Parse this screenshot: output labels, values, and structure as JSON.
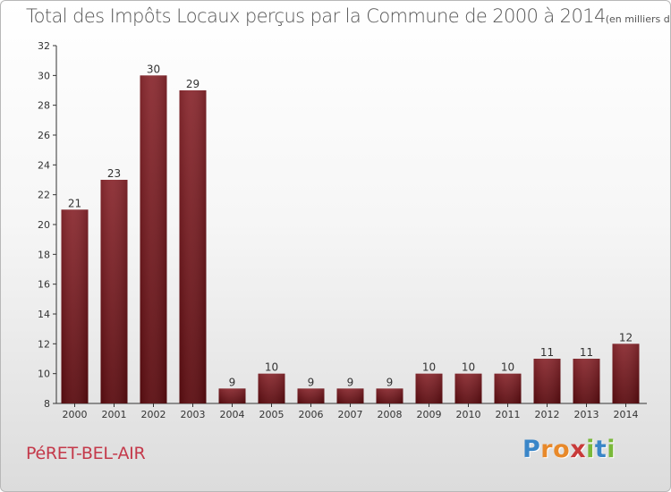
{
  "header": {
    "title": "Total des Impôts Locaux perçus par la Commune de 2000 à 2014",
    "unit": "(en milliers d'€)"
  },
  "footer": {
    "commune": "PéRET-BEL-AIR",
    "logo_letters": [
      "P",
      "r",
      "o",
      "x",
      "i",
      "t",
      "i"
    ],
    "logo_colors": [
      "#3a86c8",
      "#e8892a",
      "#e8892a",
      "#c83a3a",
      "#7ab93a",
      "#3a86c8",
      "#7ab93a"
    ]
  },
  "chart_data": {
    "type": "bar",
    "title": "Total des Impôts Locaux perçus par la Commune de 2000 à 2014",
    "categories": [
      "2000",
      "2001",
      "2002",
      "2003",
      "2004",
      "2005",
      "2006",
      "2007",
      "2008",
      "2009",
      "2010",
      "2011",
      "2012",
      "2013",
      "2014"
    ],
    "values": [
      21,
      23,
      30,
      29,
      9,
      10,
      9,
      9,
      9,
      10,
      10,
      10,
      11,
      11,
      12
    ],
    "ylim": [
      8,
      32
    ],
    "yticks": [
      8,
      10,
      12,
      14,
      16,
      18,
      20,
      22,
      24,
      26,
      28,
      30,
      32
    ],
    "grid": false,
    "bar_color": "#7a1f24",
    "data_labels": true
  }
}
